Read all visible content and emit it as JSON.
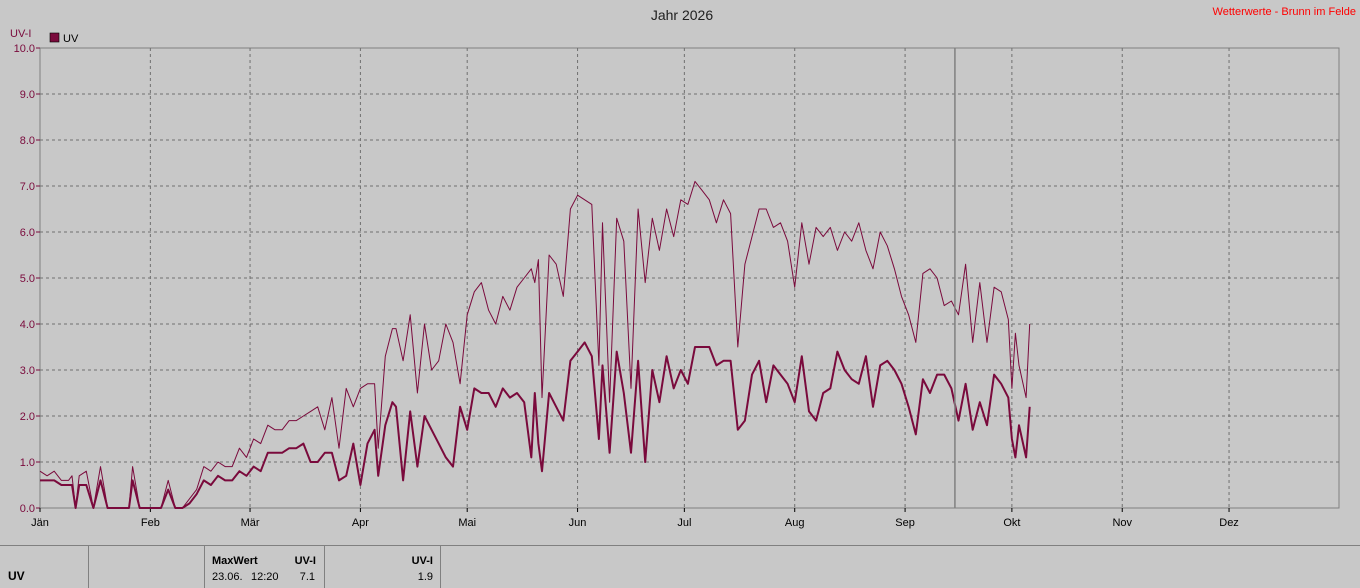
{
  "title": "Jahr 2026",
  "source_label": "Wetterwerte - Brunn im Felde",
  "chart_data": {
    "type": "line",
    "ylabel": "UV-I",
    "ylim": [
      0,
      10
    ],
    "y_ticks": [
      "0.0",
      "1.0",
      "2.0",
      "3.0",
      "4.0",
      "5.0",
      "6.0",
      "7.0",
      "8.0",
      "9.0",
      "10.0"
    ],
    "x_ticks": [
      "Jän",
      "Feb",
      "Mär",
      "Apr",
      "Mai",
      "Jun",
      "Jul",
      "Aug",
      "Sep",
      "Okt",
      "Nov",
      "Dez"
    ],
    "legend": {
      "position": "top-left",
      "entries": [
        "UV"
      ]
    },
    "grid": true,
    "current_day_marker": "2026-09-15",
    "series": [
      {
        "name": "UV",
        "role": "daily-mean",
        "color": "#7a0a3c",
        "points": [
          [
            1,
            0.6
          ],
          [
            3,
            0.6
          ],
          [
            5,
            0.6
          ],
          [
            7,
            0.5
          ],
          [
            9,
            0.5
          ],
          [
            10,
            0.5
          ],
          [
            11,
            0.0
          ],
          [
            12,
            0.5
          ],
          [
            14,
            0.5
          ],
          [
            16,
            0.0
          ],
          [
            18,
            0.6
          ],
          [
            20,
            0.0
          ],
          [
            22,
            0.0
          ],
          [
            24,
            0.0
          ],
          [
            26,
            0.0
          ],
          [
            27,
            0.6
          ],
          [
            29,
            0.0
          ],
          [
            31,
            0.0
          ],
          [
            33,
            0.0
          ],
          [
            35,
            0.0
          ],
          [
            37,
            0.4
          ],
          [
            39,
            0.0
          ],
          [
            40,
            0.0
          ],
          [
            41,
            0.0
          ],
          [
            43,
            0.1
          ],
          [
            45,
            0.3
          ],
          [
            47,
            0.6
          ],
          [
            49,
            0.5
          ],
          [
            51,
            0.7
          ],
          [
            53,
            0.6
          ],
          [
            55,
            0.6
          ],
          [
            57,
            0.8
          ],
          [
            59,
            0.7
          ],
          [
            61,
            0.9
          ],
          [
            63,
            0.8
          ],
          [
            65,
            1.2
          ],
          [
            67,
            1.2
          ],
          [
            69,
            1.2
          ],
          [
            71,
            1.3
          ],
          [
            73,
            1.3
          ],
          [
            75,
            1.4
          ],
          [
            77,
            1.0
          ],
          [
            79,
            1.0
          ],
          [
            81,
            1.2
          ],
          [
            83,
            1.2
          ],
          [
            85,
            0.6
          ],
          [
            87,
            0.7
          ],
          [
            89,
            1.4
          ],
          [
            91,
            0.5
          ],
          [
            93,
            1.4
          ],
          [
            95,
            1.7
          ],
          [
            96,
            0.7
          ],
          [
            98,
            1.8
          ],
          [
            100,
            2.3
          ],
          [
            101,
            2.2
          ],
          [
            103,
            0.6
          ],
          [
            105,
            2.1
          ],
          [
            107,
            0.9
          ],
          [
            109,
            2.0
          ],
          [
            111,
            1.7
          ],
          [
            113,
            1.4
          ],
          [
            115,
            1.1
          ],
          [
            117,
            0.9
          ],
          [
            119,
            2.2
          ],
          [
            121,
            1.7
          ],
          [
            123,
            2.6
          ],
          [
            125,
            2.5
          ],
          [
            127,
            2.5
          ],
          [
            129,
            2.2
          ],
          [
            131,
            2.6
          ],
          [
            133,
            2.4
          ],
          [
            135,
            2.5
          ],
          [
            137,
            2.3
          ],
          [
            139,
            1.1
          ],
          [
            140,
            2.5
          ],
          [
            141,
            1.4
          ],
          [
            142,
            0.8
          ],
          [
            144,
            2.5
          ],
          [
            146,
            2.2
          ],
          [
            148,
            1.9
          ],
          [
            150,
            3.2
          ],
          [
            152,
            3.4
          ],
          [
            154,
            3.6
          ],
          [
            156,
            3.3
          ],
          [
            158,
            1.5
          ],
          [
            159,
            3.1
          ],
          [
            161,
            1.2
          ],
          [
            163,
            3.4
          ],
          [
            165,
            2.5
          ],
          [
            167,
            1.2
          ],
          [
            169,
            3.2
          ],
          [
            171,
            1.0
          ],
          [
            173,
            3.0
          ],
          [
            175,
            2.3
          ],
          [
            177,
            3.3
          ],
          [
            179,
            2.6
          ],
          [
            181,
            3.0
          ],
          [
            183,
            2.7
          ],
          [
            185,
            3.5
          ],
          [
            187,
            3.5
          ],
          [
            189,
            3.5
          ],
          [
            191,
            3.1
          ],
          [
            193,
            3.2
          ],
          [
            195,
            3.2
          ],
          [
            197,
            1.7
          ],
          [
            199,
            1.9
          ],
          [
            201,
            2.9
          ],
          [
            203,
            3.2
          ],
          [
            205,
            2.3
          ],
          [
            207,
            3.1
          ],
          [
            209,
            2.9
          ],
          [
            211,
            2.7
          ],
          [
            213,
            2.3
          ],
          [
            215,
            3.3
          ],
          [
            217,
            2.1
          ],
          [
            219,
            1.9
          ],
          [
            221,
            2.5
          ],
          [
            223,
            2.6
          ],
          [
            225,
            3.4
          ],
          [
            227,
            3.0
          ],
          [
            229,
            2.8
          ],
          [
            231,
            2.7
          ],
          [
            233,
            3.3
          ],
          [
            235,
            2.2
          ],
          [
            237,
            3.1
          ],
          [
            239,
            3.2
          ],
          [
            241,
            3.0
          ],
          [
            243,
            2.7
          ],
          [
            245,
            2.2
          ],
          [
            247,
            1.6
          ],
          [
            249,
            2.8
          ],
          [
            251,
            2.5
          ],
          [
            253,
            2.9
          ],
          [
            255,
            2.9
          ],
          [
            257,
            2.6
          ],
          [
            259,
            1.9
          ],
          [
            261,
            2.7
          ],
          [
            263,
            1.7
          ],
          [
            265,
            2.3
          ],
          [
            267,
            1.8
          ],
          [
            269,
            2.9
          ],
          [
            271,
            2.7
          ],
          [
            273,
            2.4
          ],
          [
            274,
            1.5
          ],
          [
            275,
            1.1
          ],
          [
            276,
            1.8
          ],
          [
            278,
            1.1
          ],
          [
            279,
            2.2
          ]
        ]
      },
      {
        "name": "UV",
        "role": "daily-max",
        "color": "#7a0a3c",
        "points": [
          [
            1,
            0.8
          ],
          [
            3,
            0.7
          ],
          [
            5,
            0.8
          ],
          [
            7,
            0.6
          ],
          [
            9,
            0.6
          ],
          [
            10,
            0.7
          ],
          [
            11,
            0.0
          ],
          [
            12,
            0.7
          ],
          [
            14,
            0.8
          ],
          [
            16,
            0.0
          ],
          [
            18,
            0.9
          ],
          [
            20,
            0.0
          ],
          [
            22,
            0.0
          ],
          [
            24,
            0.0
          ],
          [
            26,
            0.0
          ],
          [
            27,
            0.9
          ],
          [
            29,
            0.0
          ],
          [
            31,
            0.0
          ],
          [
            33,
            0.0
          ],
          [
            35,
            0.0
          ],
          [
            37,
            0.6
          ],
          [
            39,
            0.0
          ],
          [
            40,
            0.0
          ],
          [
            41,
            0.0
          ],
          [
            43,
            0.2
          ],
          [
            45,
            0.4
          ],
          [
            47,
            0.9
          ],
          [
            49,
            0.8
          ],
          [
            51,
            1.0
          ],
          [
            53,
            0.9
          ],
          [
            55,
            0.9
          ],
          [
            57,
            1.3
          ],
          [
            59,
            1.1
          ],
          [
            61,
            1.5
          ],
          [
            63,
            1.4
          ],
          [
            65,
            1.8
          ],
          [
            67,
            1.7
          ],
          [
            69,
            1.7
          ],
          [
            71,
            1.9
          ],
          [
            73,
            1.9
          ],
          [
            75,
            2.0
          ],
          [
            77,
            2.1
          ],
          [
            79,
            2.2
          ],
          [
            81,
            1.7
          ],
          [
            83,
            2.4
          ],
          [
            85,
            1.3
          ],
          [
            87,
            2.6
          ],
          [
            89,
            2.2
          ],
          [
            91,
            2.6
          ],
          [
            93,
            2.7
          ],
          [
            95,
            2.7
          ],
          [
            96,
            1.3
          ],
          [
            98,
            3.3
          ],
          [
            100,
            3.9
          ],
          [
            101,
            3.9
          ],
          [
            103,
            3.2
          ],
          [
            105,
            4.2
          ],
          [
            107,
            2.5
          ],
          [
            109,
            4.0
          ],
          [
            111,
            3.0
          ],
          [
            113,
            3.2
          ],
          [
            115,
            4.0
          ],
          [
            117,
            3.6
          ],
          [
            119,
            2.7
          ],
          [
            121,
            4.2
          ],
          [
            123,
            4.7
          ],
          [
            125,
            4.9
          ],
          [
            127,
            4.3
          ],
          [
            129,
            4.0
          ],
          [
            131,
            4.6
          ],
          [
            133,
            4.3
          ],
          [
            135,
            4.8
          ],
          [
            137,
            5.0
          ],
          [
            139,
            5.2
          ],
          [
            140,
            4.9
          ],
          [
            141,
            5.4
          ],
          [
            142,
            2.4
          ],
          [
            144,
            5.5
          ],
          [
            146,
            5.3
          ],
          [
            148,
            4.6
          ],
          [
            150,
            6.5
          ],
          [
            152,
            6.8
          ],
          [
            154,
            6.7
          ],
          [
            156,
            6.6
          ],
          [
            158,
            3.1
          ],
          [
            159,
            6.2
          ],
          [
            161,
            2.3
          ],
          [
            163,
            6.3
          ],
          [
            165,
            5.8
          ],
          [
            167,
            2.6
          ],
          [
            169,
            6.5
          ],
          [
            171,
            4.9
          ],
          [
            173,
            6.3
          ],
          [
            175,
            5.6
          ],
          [
            177,
            6.5
          ],
          [
            179,
            5.9
          ],
          [
            181,
            6.7
          ],
          [
            183,
            6.6
          ],
          [
            185,
            7.1
          ],
          [
            187,
            6.9
          ],
          [
            189,
            6.7
          ],
          [
            191,
            6.2
          ],
          [
            193,
            6.7
          ],
          [
            195,
            6.4
          ],
          [
            197,
            3.5
          ],
          [
            199,
            5.3
          ],
          [
            201,
            5.9
          ],
          [
            203,
            6.5
          ],
          [
            205,
            6.5
          ],
          [
            207,
            6.1
          ],
          [
            209,
            6.2
          ],
          [
            211,
            5.8
          ],
          [
            213,
            4.8
          ],
          [
            215,
            6.2
          ],
          [
            217,
            5.3
          ],
          [
            219,
            6.1
          ],
          [
            221,
            5.9
          ],
          [
            223,
            6.1
          ],
          [
            225,
            5.6
          ],
          [
            227,
            6.0
          ],
          [
            229,
            5.8
          ],
          [
            231,
            6.2
          ],
          [
            233,
            5.6
          ],
          [
            235,
            5.2
          ],
          [
            237,
            6.0
          ],
          [
            239,
            5.7
          ],
          [
            241,
            5.2
          ],
          [
            243,
            4.6
          ],
          [
            245,
            4.2
          ],
          [
            247,
            3.6
          ],
          [
            249,
            5.1
          ],
          [
            251,
            5.2
          ],
          [
            253,
            5.0
          ],
          [
            255,
            4.4
          ],
          [
            257,
            4.5
          ],
          [
            259,
            4.2
          ],
          [
            261,
            5.3
          ],
          [
            263,
            3.6
          ],
          [
            265,
            4.9
          ],
          [
            267,
            3.6
          ],
          [
            269,
            4.8
          ],
          [
            271,
            4.7
          ],
          [
            273,
            4.1
          ],
          [
            274,
            2.6
          ],
          [
            275,
            3.8
          ],
          [
            276,
            3.1
          ],
          [
            278,
            2.4
          ],
          [
            279,
            4.0
          ]
        ]
      }
    ]
  },
  "footer": {
    "series_label": "UV",
    "max_title": "MaxWert",
    "max_unit": "UV-I",
    "max_date": "23.06.",
    "max_time": "12:20",
    "max_value": "7.1",
    "current_unit": "UV-I",
    "current_value": "1.9"
  }
}
